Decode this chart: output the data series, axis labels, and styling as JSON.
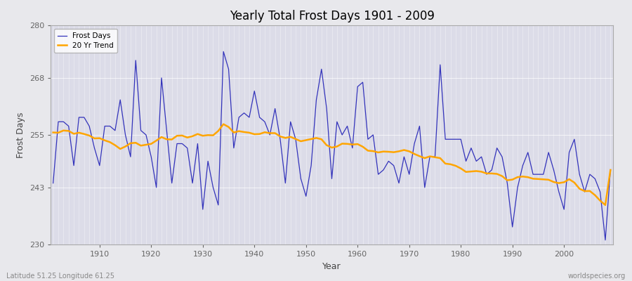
{
  "title": "Yearly Total Frost Days 1901 - 2009",
  "xlabel": "Year",
  "ylabel": "Frost Days",
  "lat_lon_label": "Latitude 51.25 Longitude 61.25",
  "source_label": "worldspecies.org",
  "ylim": [
    230,
    280
  ],
  "yticks": [
    230,
    243,
    255,
    268,
    280
  ],
  "line_color": "#3333bb",
  "trend_color": "#FFA500",
  "fig_bg_color": "#e8e8ec",
  "plot_bg_color": "#dcdce8",
  "years": [
    1901,
    1902,
    1903,
    1904,
    1905,
    1906,
    1907,
    1908,
    1909,
    1910,
    1911,
    1912,
    1913,
    1914,
    1915,
    1916,
    1917,
    1918,
    1919,
    1920,
    1921,
    1922,
    1923,
    1924,
    1925,
    1926,
    1927,
    1928,
    1929,
    1930,
    1931,
    1932,
    1933,
    1934,
    1935,
    1936,
    1937,
    1938,
    1939,
    1940,
    1941,
    1942,
    1943,
    1944,
    1945,
    1946,
    1947,
    1948,
    1949,
    1950,
    1951,
    1952,
    1953,
    1954,
    1955,
    1956,
    1957,
    1958,
    1959,
    1960,
    1961,
    1962,
    1963,
    1964,
    1965,
    1966,
    1967,
    1968,
    1969,
    1970,
    1971,
    1972,
    1973,
    1974,
    1975,
    1976,
    1977,
    1978,
    1979,
    1980,
    1981,
    1982,
    1983,
    1984,
    1985,
    1986,
    1987,
    1988,
    1989,
    1990,
    1991,
    1992,
    1993,
    1994,
    1995,
    1996,
    1997,
    1998,
    1999,
    2000,
    2001,
    2002,
    2003,
    2004,
    2005,
    2006,
    2007,
    2008,
    2009
  ],
  "frost_days": [
    244,
    258,
    258,
    257,
    248,
    259,
    259,
    257,
    252,
    248,
    257,
    257,
    256,
    263,
    255,
    250,
    272,
    256,
    255,
    250,
    243,
    268,
    256,
    244,
    253,
    253,
    252,
    244,
    253,
    238,
    249,
    243,
    239,
    274,
    270,
    252,
    259,
    260,
    259,
    265,
    259,
    258,
    255,
    261,
    254,
    244,
    258,
    254,
    245,
    241,
    248,
    263,
    270,
    261,
    245,
    258,
    255,
    257,
    252,
    266,
    267,
    254,
    255,
    246,
    247,
    249,
    248,
    244,
    250,
    246,
    253,
    257,
    243,
    250,
    250,
    271,
    254,
    254,
    254,
    254,
    249,
    252,
    249,
    250,
    246,
    247,
    252,
    250,
    244,
    234,
    243,
    248,
    251,
    246,
    246,
    246,
    251,
    247,
    242,
    238,
    251,
    254,
    246,
    242,
    246,
    245,
    242,
    231,
    247
  ]
}
